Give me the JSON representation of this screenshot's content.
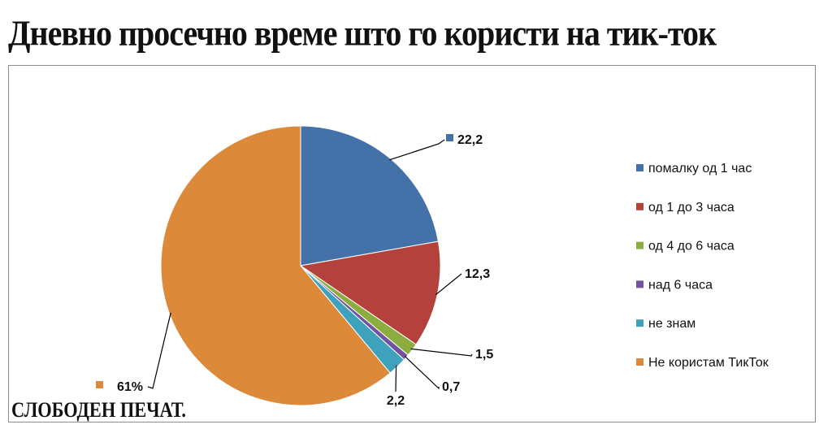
{
  "title": "Дневно просечно време што го користи на тик-ток",
  "source": "СЛОБОДЕН ПЕЧАТ.",
  "chart_data": {
    "type": "pie",
    "categories": [
      "помалку од 1 час",
      "од 1 до 3 часа",
      "од 4 до 6 часа",
      "над 6 часа",
      "не знам",
      "Не користам ТикТок"
    ],
    "values": [
      22.2,
      12.3,
      1.5,
      0.7,
      2.2,
      61
    ],
    "data_labels": [
      "22,2",
      "12,3",
      "1,5",
      "0,7",
      "2,2",
      "61%"
    ],
    "colors": [
      "#4472a8",
      "#b5413c",
      "#8bad3f",
      "#7352a0",
      "#3fa2bd",
      "#dc8a3a"
    ],
    "start_angle_deg": 0,
    "direction": "clockwise",
    "legend_position": "right",
    "title": "",
    "xlabel": "",
    "ylabel": ""
  }
}
